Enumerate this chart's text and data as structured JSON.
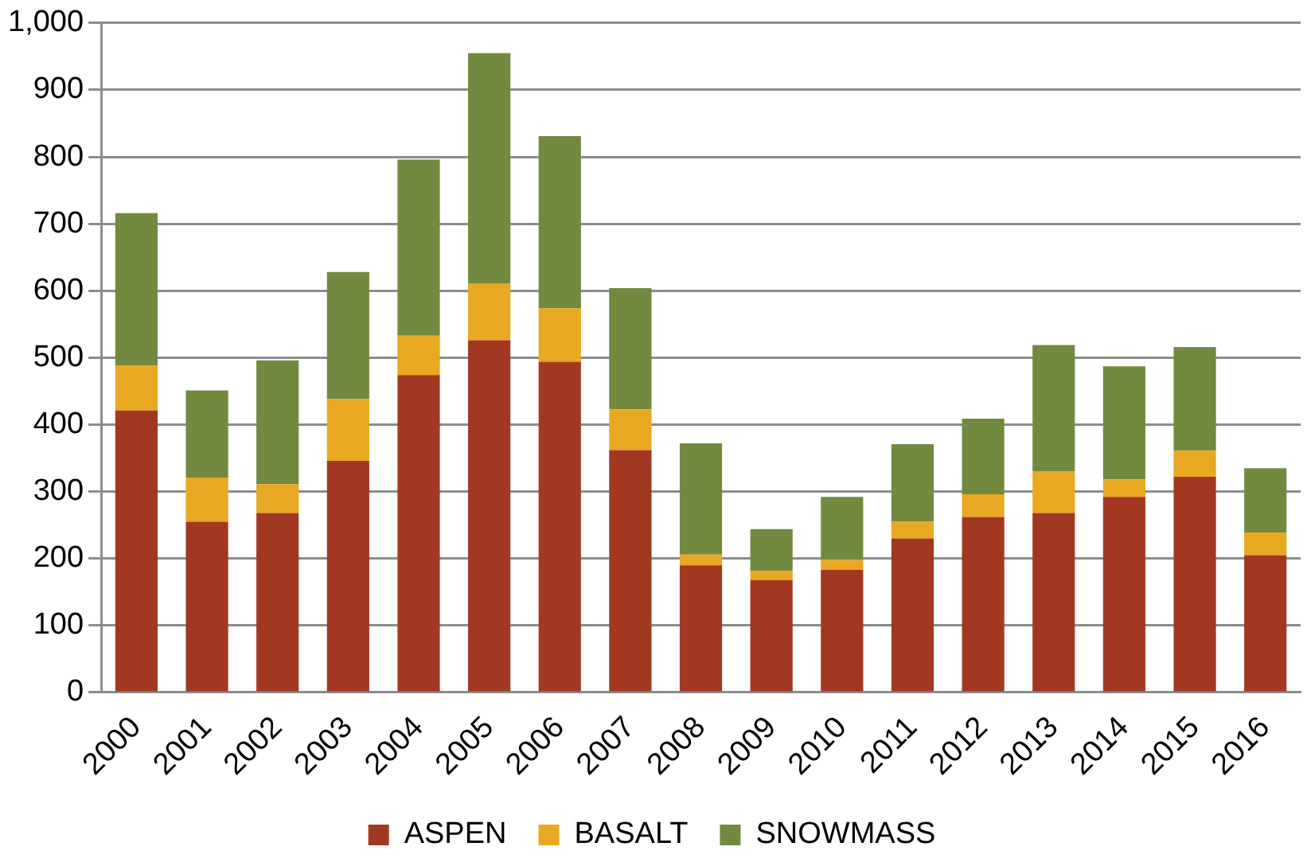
{
  "chart_data": {
    "type": "bar",
    "stacked": true,
    "categories": [
      "2000",
      "2001",
      "2002",
      "2003",
      "2004",
      "2005",
      "2006",
      "2007",
      "2008",
      "2009",
      "2010",
      "2011",
      "2012",
      "2013",
      "2014",
      "2015",
      "2016"
    ],
    "series": [
      {
        "name": "ASPEN",
        "color": "#a33822",
        "values": [
          421,
          255,
          268,
          346,
          474,
          526,
          494,
          362,
          190,
          168,
          183,
          230,
          262,
          268,
          292,
          322,
          205
        ]
      },
      {
        "name": "BASALT",
        "color": "#e8a822",
        "values": [
          67,
          66,
          43,
          92,
          59,
          85,
          80,
          61,
          16,
          14,
          15,
          25,
          34,
          62,
          26,
          39,
          34
        ]
      },
      {
        "name": "SNOWMASS",
        "color": "#728a3f",
        "values": [
          228,
          130,
          185,
          190,
          263,
          344,
          257,
          181,
          166,
          62,
          94,
          116,
          113,
          189,
          169,
          155,
          96
        ]
      }
    ],
    "ylim": [
      0,
      1000
    ],
    "yticks": [
      0,
      100,
      200,
      300,
      400,
      500,
      600,
      700,
      800,
      900,
      {
        "value": 1000,
        "label": "1,000"
      }
    ],
    "grid": "y",
    "legend": "bottom"
  }
}
